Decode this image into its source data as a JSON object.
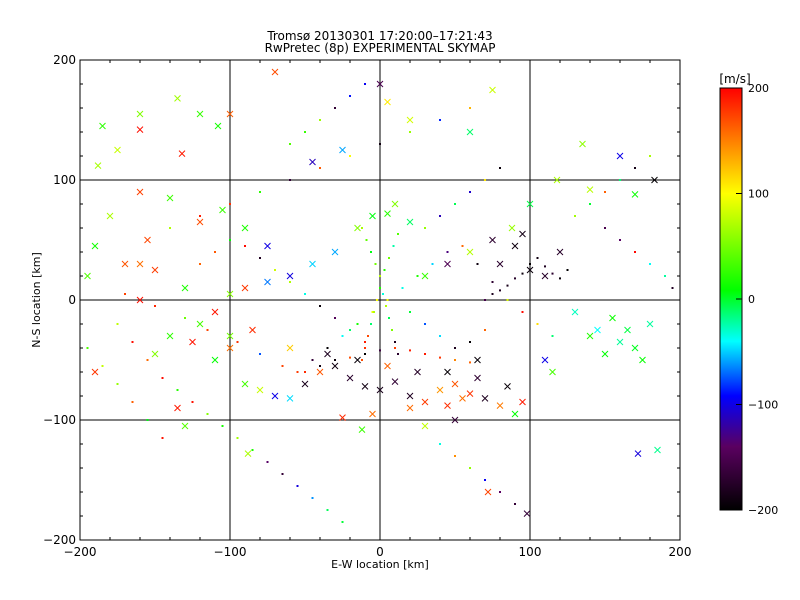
{
  "chart_data": [
    {
      "type": "scatter",
      "title": "Tromsø 20130301 17:20:00–17:21:43",
      "subtitle": "RwPretec (8p) EXPERIMENTAL SKYMAP",
      "xlabel": "E-W location [km]",
      "ylabel": "N-S location [km]",
      "xlim": [
        -200,
        200
      ],
      "ylim": [
        -200,
        200
      ],
      "xticks": [
        "−200",
        "−100",
        "0",
        "100",
        "200"
      ],
      "yticks": [
        "−200",
        "−100",
        "0",
        "100",
        "200"
      ],
      "grid": true,
      "colorbar": {
        "label": "[m/s]",
        "range": [
          -200,
          200
        ],
        "ticks": [
          "200",
          "100",
          "0",
          "−100",
          "−200"
        ],
        "colors": [
          "#000000",
          "#5a0060",
          "#0000ff",
          "#00ffff",
          "#00ff00",
          "#ffff00",
          "#ff0000"
        ]
      },
      "series": [
        {
          "marker": "x",
          "points": [
            [
              -185,
              145
            ],
            [
              -175,
              125
            ],
            [
              -160,
              155
            ],
            [
              -160,
              142
            ],
            [
              -135,
              168
            ],
            [
              -120,
              155
            ],
            [
              -108,
              145
            ],
            [
              -100,
              155
            ],
            [
              -132,
              122
            ],
            [
              -188,
              112
            ],
            [
              -160,
              90
            ],
            [
              -140,
              85
            ],
            [
              -120,
              65
            ],
            [
              -180,
              70
            ],
            [
              -155,
              50
            ],
            [
              -190,
              45
            ],
            [
              -170,
              30
            ],
            [
              -150,
              25
            ],
            [
              -195,
              20
            ],
            [
              -130,
              10
            ],
            [
              -160,
              0
            ],
            [
              -140,
              -30
            ],
            [
              -125,
              -35
            ],
            [
              -110,
              -50
            ],
            [
              -100,
              -40
            ],
            [
              -90,
              -70
            ],
            [
              -80,
              -75
            ],
            [
              -70,
              -80
            ],
            [
              -60,
              -82
            ],
            [
              -50,
              -70
            ],
            [
              -40,
              -60
            ],
            [
              -30,
              -55
            ],
            [
              -20,
              -65
            ],
            [
              -10,
              -72
            ],
            [
              0,
              -75
            ],
            [
              10,
              -68
            ],
            [
              20,
              -80
            ],
            [
              30,
              -85
            ],
            [
              40,
              -75
            ],
            [
              50,
              -70
            ],
            [
              60,
              -78
            ],
            [
              70,
              -82
            ],
            [
              80,
              -88
            ],
            [
              90,
              -95
            ],
            [
              -100,
              -30
            ],
            [
              -85,
              -25
            ],
            [
              -120,
              -20
            ],
            [
              -150,
              -45
            ],
            [
              -135,
              -90
            ],
            [
              -130,
              -105
            ],
            [
              -190,
              -60
            ],
            [
              -88,
              -128
            ],
            [
              -12,
              -108
            ],
            [
              30,
              -105
            ],
            [
              50,
              -100
            ],
            [
              72,
              -160
            ],
            [
              98,
              -178
            ],
            [
              172,
              -128
            ],
            [
              185,
              -125
            ],
            [
              120,
              40
            ],
            [
              90,
              45
            ],
            [
              80,
              30
            ],
            [
              100,
              25
            ],
            [
              110,
              20
            ],
            [
              95,
              55
            ],
            [
              130,
              -10
            ],
            [
              145,
              -25
            ],
            [
              160,
              -35
            ],
            [
              170,
              -40
            ],
            [
              175,
              -50
            ],
            [
              150,
              -45
            ],
            [
              140,
              -30
            ],
            [
              165,
              -25
            ],
            [
              155,
              -15
            ],
            [
              180,
              -20
            ],
            [
              183,
              100
            ],
            [
              160,
              120
            ],
            [
              170,
              88
            ],
            [
              135,
              130
            ],
            [
              140,
              92
            ],
            [
              118,
              100
            ],
            [
              100,
              80
            ],
            [
              88,
              60
            ],
            [
              75,
              50
            ],
            [
              60,
              40
            ],
            [
              45,
              30
            ],
            [
              30,
              20
            ],
            [
              20,
              65
            ],
            [
              10,
              80
            ],
            [
              5,
              72
            ],
            [
              -5,
              70
            ],
            [
              -15,
              60
            ],
            [
              -30,
              40
            ],
            [
              -45,
              30
            ],
            [
              -60,
              20
            ],
            [
              -75,
              15
            ],
            [
              -90,
              10
            ],
            [
              -100,
              5
            ],
            [
              -110,
              -10
            ],
            [
              -60,
              -40
            ],
            [
              -35,
              -45
            ],
            [
              -15,
              -50
            ],
            [
              5,
              -55
            ],
            [
              25,
              -60
            ],
            [
              45,
              -60
            ],
            [
              65,
              -50
            ],
            [
              0,
              180
            ],
            [
              5,
              165
            ],
            [
              20,
              150
            ],
            [
              75,
              175
            ],
            [
              -25,
              125
            ],
            [
              -45,
              115
            ],
            [
              60,
              140
            ],
            [
              -70,
              190
            ],
            [
              -160,
              30
            ],
            [
              -105,
              75
            ],
            [
              -90,
              60
            ],
            [
              -75,
              45
            ],
            [
              115,
              -60
            ],
            [
              95,
              -85
            ],
            [
              110,
              -50
            ],
            [
              20,
              -90
            ],
            [
              -5,
              -95
            ],
            [
              -25,
              -98
            ],
            [
              45,
              -88
            ],
            [
              55,
              -82
            ],
            [
              65,
              -65
            ],
            [
              85,
              -72
            ]
          ]
        },
        {
          "marker": "dot",
          "points": [
            [
              -170,
              5
            ],
            [
              -150,
              -5
            ],
            [
              -130,
              -15
            ],
            [
              -115,
              -25
            ],
            [
              -95,
              -35
            ],
            [
              -80,
              -45
            ],
            [
              -65,
              -55
            ],
            [
              -55,
              -60
            ],
            [
              -45,
              -50
            ],
            [
              -35,
              -40
            ],
            [
              -25,
              -30
            ],
            [
              -15,
              -20
            ],
            [
              -5,
              -10
            ],
            [
              5,
              0
            ],
            [
              15,
              10
            ],
            [
              25,
              20
            ],
            [
              35,
              30
            ],
            [
              45,
              40
            ],
            [
              55,
              45
            ],
            [
              65,
              30
            ],
            [
              75,
              15
            ],
            [
              85,
              0
            ],
            [
              95,
              -10
            ],
            [
              105,
              -20
            ],
            [
              115,
              -30
            ],
            [
              -140,
              60
            ],
            [
              -120,
              70
            ],
            [
              -100,
              80
            ],
            [
              -80,
              90
            ],
            [
              -60,
              100
            ],
            [
              -40,
              110
            ],
            [
              -20,
              120
            ],
            [
              0,
              130
            ],
            [
              20,
              140
            ],
            [
              40,
              150
            ],
            [
              60,
              160
            ],
            [
              -175,
              -20
            ],
            [
              -165,
              -35
            ],
            [
              -155,
              -50
            ],
            [
              -145,
              -65
            ],
            [
              -135,
              -75
            ],
            [
              -125,
              -85
            ],
            [
              -115,
              -95
            ],
            [
              -105,
              -105
            ],
            [
              -95,
              -115
            ],
            [
              -85,
              -125
            ],
            [
              -75,
              -135
            ],
            [
              -65,
              -145
            ],
            [
              -55,
              -155
            ],
            [
              -45,
              -165
            ],
            [
              -35,
              -175
            ],
            [
              -25,
              -185
            ],
            [
              100,
              30
            ],
            [
              105,
              35
            ],
            [
              110,
              28
            ],
            [
              115,
              22
            ],
            [
              120,
              18
            ],
            [
              125,
              25
            ],
            [
              95,
              22
            ],
            [
              90,
              18
            ],
            [
              85,
              12
            ],
            [
              80,
              8
            ],
            [
              75,
              5
            ],
            [
              70,
              0
            ],
            [
              0,
              20
            ],
            [
              3,
              25
            ],
            [
              -3,
              30
            ],
            [
              6,
              35
            ],
            [
              -6,
              40
            ],
            [
              9,
              45
            ],
            [
              -9,
              50
            ],
            [
              12,
              55
            ],
            [
              -12,
              60
            ],
            [
              0,
              10
            ],
            [
              2,
              5
            ],
            [
              -2,
              0
            ],
            [
              4,
              -5
            ],
            [
              -4,
              -10
            ],
            [
              6,
              -15
            ],
            [
              -6,
              -20
            ],
            [
              8,
              -25
            ],
            [
              -8,
              -30
            ],
            [
              10,
              -35
            ],
            [
              -10,
              -40
            ],
            [
              12,
              -45
            ],
            [
              -12,
              -50
            ],
            [
              -50,
              -60
            ],
            [
              -40,
              -55
            ],
            [
              -30,
              -50
            ],
            [
              -20,
              -48
            ],
            [
              -10,
              -45
            ],
            [
              0,
              -42
            ],
            [
              10,
              -40
            ],
            [
              20,
              -42
            ],
            [
              30,
              -45
            ],
            [
              40,
              -48
            ],
            [
              50,
              -50
            ],
            [
              60,
              -52
            ],
            [
              130,
              70
            ],
            [
              140,
              80
            ],
            [
              150,
              90
            ],
            [
              160,
              100
            ],
            [
              170,
              110
            ],
            [
              180,
              120
            ],
            [
              150,
              60
            ],
            [
              160,
              50
            ],
            [
              170,
              40
            ],
            [
              180,
              30
            ],
            [
              190,
              20
            ],
            [
              195,
              10
            ],
            [
              -195,
              -40
            ],
            [
              -185,
              -55
            ],
            [
              -175,
              -70
            ],
            [
              -165,
              -85
            ],
            [
              -155,
              -100
            ],
            [
              -145,
              -115
            ],
            [
              40,
              -120
            ],
            [
              50,
              -130
            ],
            [
              60,
              -140
            ],
            [
              70,
              -150
            ],
            [
              80,
              -160
            ],
            [
              90,
              -170
            ],
            [
              -60,
              130
            ],
            [
              -50,
              140
            ],
            [
              -40,
              150
            ],
            [
              -30,
              160
            ],
            [
              -20,
              170
            ],
            [
              -10,
              180
            ],
            [
              -120,
              30
            ],
            [
              -110,
              40
            ],
            [
              -100,
              50
            ],
            [
              -90,
              45
            ],
            [
              -80,
              35
            ],
            [
              -70,
              25
            ],
            [
              -60,
              15
            ],
            [
              -50,
              5
            ],
            [
              -40,
              -5
            ],
            [
              -30,
              -15
            ],
            [
              -20,
              -25
            ],
            [
              -10,
              -35
            ],
            [
              30,
              60
            ],
            [
              40,
              70
            ],
            [
              50,
              80
            ],
            [
              60,
              90
            ],
            [
              70,
              100
            ],
            [
              80,
              110
            ],
            [
              20,
              -10
            ],
            [
              30,
              -20
            ],
            [
              40,
              -30
            ],
            [
              50,
              -40
            ],
            [
              60,
              -35
            ],
            [
              70,
              -25
            ]
          ]
        }
      ]
    }
  ]
}
